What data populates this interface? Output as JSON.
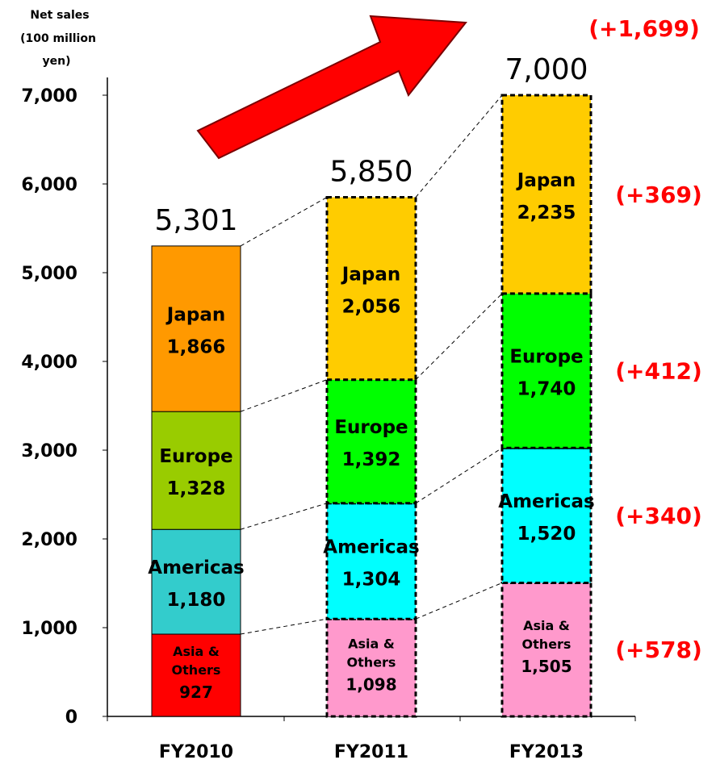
{
  "chart_data": {
    "type": "bar",
    "stacked": true,
    "ylabel": "Net sales (100 million yen)",
    "ylim": [
      0,
      7000
    ],
    "yticks": [
      "0",
      "1,000",
      "2,000",
      "3,000",
      "4,000",
      "5,000",
      "6,000",
      "7,000"
    ],
    "categories": [
      "FY2010",
      "FY2011",
      "FY2013"
    ],
    "totals": [
      5301,
      5850,
      7000
    ],
    "total_labels": [
      "5,301",
      "5,850",
      "7,000"
    ],
    "series": [
      {
        "name": "Asia & Others",
        "values": [
          927,
          1098,
          1505
        ],
        "labels": [
          "927",
          "1,098",
          "1,505"
        ],
        "colors": [
          "#ff0000",
          "#ff99cc",
          "#ff99cc"
        ]
      },
      {
        "name": "Americas",
        "values": [
          1180,
          1304,
          1520
        ],
        "labels": [
          "1,180",
          "1,304",
          "1,520"
        ],
        "colors": [
          "#33cccc",
          "#00ffff",
          "#00ffff"
        ]
      },
      {
        "name": "Europe",
        "values": [
          1328,
          1392,
          1740
        ],
        "labels": [
          "1,328",
          "1,392",
          "1,740"
        ],
        "colors": [
          "#99cc00",
          "#00ff00",
          "#00ff00"
        ]
      },
      {
        "name": "Japan",
        "values": [
          1866,
          2056,
          2235
        ],
        "labels": [
          "1,866",
          "2,056",
          "2,235"
        ],
        "colors": [
          "#ff9900",
          "#ffcc00",
          "#ffcc00"
        ]
      }
    ],
    "increase_labels": {
      "Asia & Others": "(+578)",
      "Americas": "(+340)",
      "Europe": "(+412)",
      "Japan": "(+369)",
      "total": "(+1,699)"
    },
    "arrow_color": "#ff0000"
  }
}
